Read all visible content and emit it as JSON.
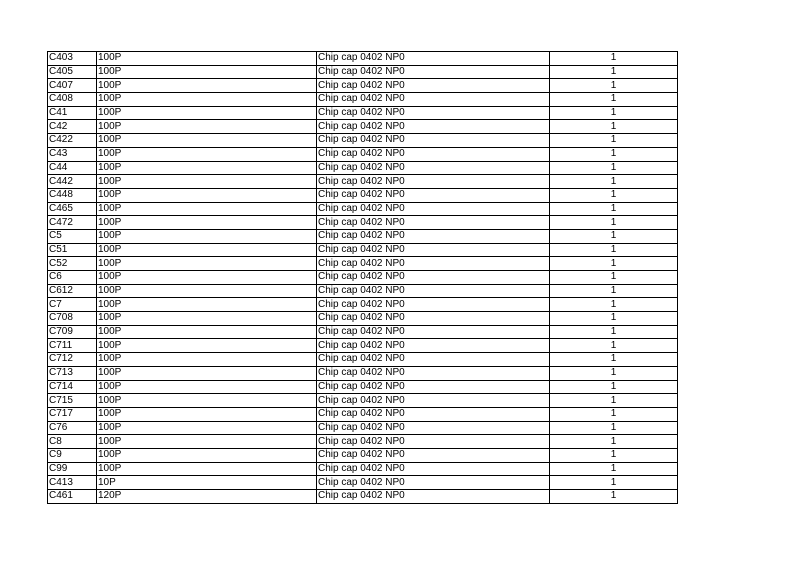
{
  "table": {
    "rows": [
      [
        "C403",
        "100P",
        "Chip cap 0402 NP0",
        "1"
      ],
      [
        "C405",
        "100P",
        "Chip cap 0402 NP0",
        "1"
      ],
      [
        "C407",
        "100P",
        "Chip cap 0402 NP0",
        "1"
      ],
      [
        "C408",
        "100P",
        "Chip cap 0402 NP0",
        "1"
      ],
      [
        "C41",
        "100P",
        "Chip cap 0402 NP0",
        "1"
      ],
      [
        "C42",
        "100P",
        "Chip cap 0402 NP0",
        "1"
      ],
      [
        "C422",
        "100P",
        "Chip cap 0402 NP0",
        "1"
      ],
      [
        "C43",
        "100P",
        "Chip cap 0402 NP0",
        "1"
      ],
      [
        "C44",
        "100P",
        "Chip cap 0402 NP0",
        "1"
      ],
      [
        "C442",
        "100P",
        "Chip cap 0402 NP0",
        "1"
      ],
      [
        "C448",
        "100P",
        "Chip cap 0402 NP0",
        "1"
      ],
      [
        "C465",
        "100P",
        "Chip cap 0402 NP0",
        "1"
      ],
      [
        "C472",
        "100P",
        "Chip cap 0402 NP0",
        "1"
      ],
      [
        "C5",
        "100P",
        "Chip cap 0402 NP0",
        "1"
      ],
      [
        "C51",
        "100P",
        "Chip cap 0402 NP0",
        "1"
      ],
      [
        "C52",
        "100P",
        "Chip cap 0402 NP0",
        "1"
      ],
      [
        "C6",
        "100P",
        "Chip cap 0402 NP0",
        "1"
      ],
      [
        "C612",
        "100P",
        "Chip cap 0402 NP0",
        "1"
      ],
      [
        "C7",
        "100P",
        "Chip cap 0402 NP0",
        "1"
      ],
      [
        "C708",
        "100P",
        "Chip cap 0402 NP0",
        "1"
      ],
      [
        "C709",
        "100P",
        "Chip cap 0402 NP0",
        "1"
      ],
      [
        "C711",
        "100P",
        "Chip cap 0402 NP0",
        "1"
      ],
      [
        "C712",
        "100P",
        "Chip cap 0402 NP0",
        "1"
      ],
      [
        "C713",
        "100P",
        "Chip cap 0402 NP0",
        "1"
      ],
      [
        "C714",
        "100P",
        "Chip cap 0402 NP0",
        "1"
      ],
      [
        "C715",
        "100P",
        "Chip cap 0402 NP0",
        "1"
      ],
      [
        "C717",
        "100P",
        "Chip cap 0402 NP0",
        "1"
      ],
      [
        "C76",
        "100P",
        "Chip cap 0402 NP0",
        "1"
      ],
      [
        "C8",
        "100P",
        "Chip cap 0402 NP0",
        "1"
      ],
      [
        "C9",
        "100P",
        "Chip cap 0402 NP0",
        "1"
      ],
      [
        "C99",
        "100P",
        "Chip cap 0402 NP0",
        "1"
      ],
      [
        "C413",
        "10P",
        "Chip cap 0402 NP0",
        "1"
      ],
      [
        "C461",
        "120P",
        "Chip cap 0402 NP0",
        "1"
      ]
    ]
  }
}
